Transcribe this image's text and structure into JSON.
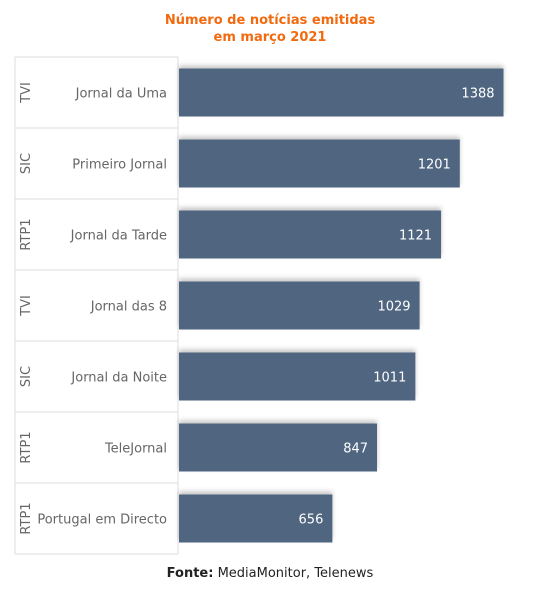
{
  "chart_data": {
    "type": "bar",
    "orientation": "horizontal",
    "title_line1": "Número de notícias emitidas",
    "title_line2": "em março 2021",
    "categories": [
      "Jornal da Uma",
      "Primeiro Jornal",
      "Jornal da Tarde",
      "Jornal das 8",
      "Jornal da Noite",
      "TeleJornal",
      "Portugal em Directo"
    ],
    "groups": [
      "TVI",
      "SIC",
      "RTP1",
      "TVI",
      "SIC",
      "RTP1",
      "RTP1"
    ],
    "values": [
      1388,
      1201,
      1121,
      1029,
      1011,
      847,
      656
    ],
    "xlim": [
      0,
      1420
    ],
    "bar_color": "#4f6580",
    "data_labels": true,
    "legend": "none",
    "grid": false
  },
  "source": {
    "label": "Fonte:",
    "text": "MediaMonitor, Telenews"
  }
}
